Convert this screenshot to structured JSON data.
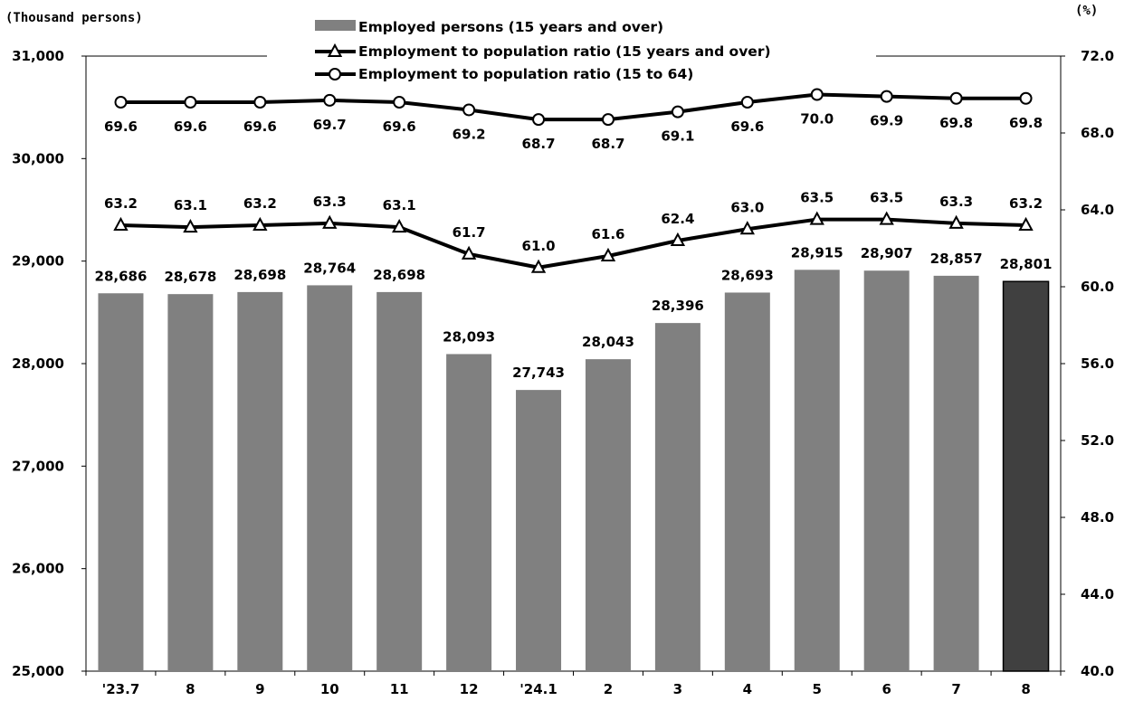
{
  "units": {
    "left": "(Thousand persons)",
    "right": "(%)"
  },
  "chart_data": {
    "type": "bar",
    "categories": [
      "'23.7",
      "8",
      "9",
      "10",
      "11",
      "12",
      "'24.1",
      "2",
      "3",
      "4",
      "5",
      "6",
      "7",
      "8"
    ],
    "left_axis": {
      "min": 25000,
      "max": 31000,
      "step": 1000,
      "tick_labels": [
        "25,000",
        "26,000",
        "27,000",
        "28,000",
        "29,000",
        "30,000",
        "31,000"
      ]
    },
    "right_axis": {
      "min": 40.0,
      "max": 72.0,
      "step": 4.0,
      "tick_labels": [
        "40.0",
        "44.0",
        "48.0",
        "52.0",
        "56.0",
        "60.0",
        "64.0",
        "68.0",
        "72.0"
      ]
    },
    "series": [
      {
        "name": "Employed persons (15 years and over)",
        "type": "bar",
        "axis": "left",
        "values": [
          28686,
          28678,
          28698,
          28764,
          28698,
          28093,
          27743,
          28043,
          28396,
          28693,
          28915,
          28907,
          28857,
          28801
        ],
        "labels": [
          "28,686",
          "28,678",
          "28,698",
          "28,764",
          "28,698",
          "28,093",
          "27,743",
          "28,043",
          "28,396",
          "28,693",
          "28,915",
          "28,907",
          "28,857",
          "28,801"
        ],
        "color": "#808080",
        "highlight_color": "#404040"
      },
      {
        "name": "Employment to population ratio (15 years and over)",
        "type": "line",
        "marker": "triangle",
        "axis": "right",
        "values": [
          63.2,
          63.1,
          63.2,
          63.3,
          63.1,
          61.7,
          61.0,
          61.6,
          62.4,
          63.0,
          63.5,
          63.5,
          63.3,
          63.2
        ],
        "labels": [
          "63.2",
          "63.1",
          "63.2",
          "63.3",
          "63.1",
          "61.7",
          "61.0",
          "61.6",
          "62.4",
          "63.0",
          "63.5",
          "63.5",
          "63.3",
          "63.2"
        ],
        "color": "#000000"
      },
      {
        "name": "Employment to population ratio (15 to 64)",
        "type": "line",
        "marker": "circle",
        "axis": "right",
        "values": [
          69.6,
          69.6,
          69.6,
          69.7,
          69.6,
          69.2,
          68.7,
          68.7,
          69.1,
          69.6,
          70.0,
          69.9,
          69.8,
          69.8
        ],
        "labels": [
          "69.6",
          "69.6",
          "69.6",
          "69.7",
          "69.6",
          "69.2",
          "68.7",
          "68.7",
          "69.1",
          "69.6",
          "70.0",
          "69.9",
          "69.8",
          "69.8"
        ],
        "color": "#000000"
      }
    ],
    "legend": "top-center",
    "grid": false
  }
}
